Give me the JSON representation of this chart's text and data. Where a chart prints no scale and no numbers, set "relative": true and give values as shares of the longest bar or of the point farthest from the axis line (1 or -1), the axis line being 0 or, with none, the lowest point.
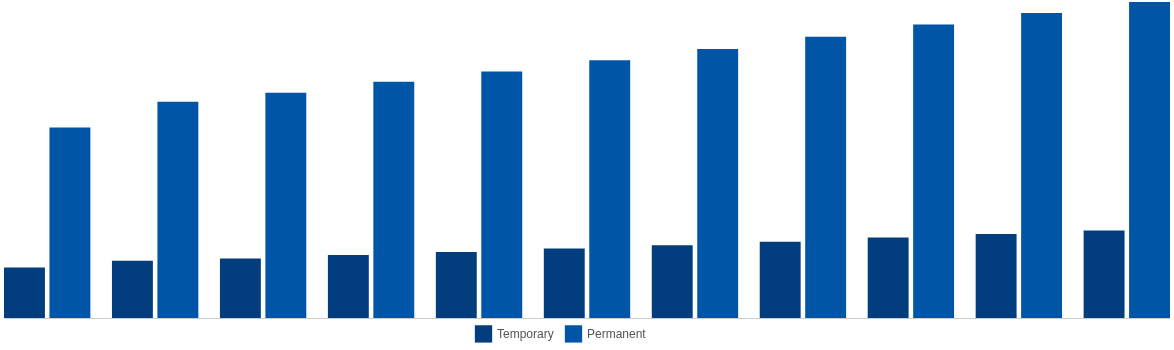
{
  "chart_data": {
    "type": "bar",
    "relative": true,
    "legend": "bottom",
    "categories": [
      null,
      null,
      null,
      null,
      null,
      null,
      null,
      null,
      null,
      null,
      null
    ],
    "series": [
      {
        "name": "Temporary",
        "color": "#023e7d",
        "values": [
          0.16,
          0.181,
          0.188,
          0.199,
          0.209,
          0.22,
          0.23,
          0.241,
          0.255,
          0.266,
          0.277
        ]
      },
      {
        "name": "Permanent",
        "color": "#0055a6",
        "values": [
          0.603,
          0.684,
          0.713,
          0.748,
          0.78,
          0.816,
          0.851,
          0.89,
          0.929,
          0.965,
          1
        ]
      }
    ]
  }
}
